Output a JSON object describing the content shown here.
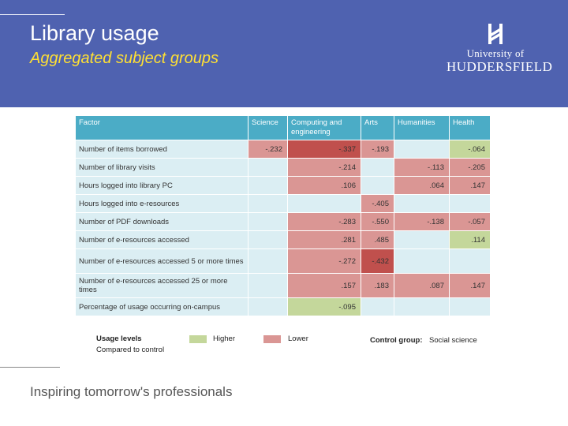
{
  "slide": {
    "title": "Library usage",
    "subtitle": "Aggregated subject groups",
    "logo": {
      "line1": "University of",
      "line2": "HUDDERSFIELD",
      "icon": "university-crest-icon"
    },
    "tagline": "Inspiring tomorrow's professionals"
  },
  "table": {
    "headers": [
      "Factor",
      "Science",
      "Computing and engineering",
      "Arts",
      "Humanities",
      "Health"
    ],
    "rows": [
      {
        "factor": "Number of items borrowed",
        "values": [
          "-.232",
          "-.337",
          "-.193",
          "",
          "-.064"
        ],
        "levels": [
          "lower",
          "lower-dark",
          "lower",
          "none",
          "higher"
        ]
      },
      {
        "factor": "Number of library visits",
        "values": [
          "",
          "-.214",
          "",
          "-.113",
          "-.205"
        ],
        "levels": [
          "none",
          "lower",
          "none",
          "lower",
          "lower"
        ]
      },
      {
        "factor": "Hours logged into library PC",
        "values": [
          "",
          ".106",
          "",
          ".064",
          ".147"
        ],
        "levels": [
          "none",
          "lower",
          "none",
          "lower",
          "lower"
        ]
      },
      {
        "factor": "Hours logged into e-resources",
        "values": [
          "",
          "",
          "-.405",
          "",
          ""
        ],
        "levels": [
          "none",
          "none",
          "lower",
          "none",
          "none"
        ]
      },
      {
        "factor": "Number of PDF downloads",
        "values": [
          "",
          "-.283",
          "-.550",
          "-.138",
          "-.057"
        ],
        "levels": [
          "none",
          "lower",
          "lower",
          "lower",
          "lower"
        ]
      },
      {
        "factor": "Number of e-resources accessed",
        "values": [
          "",
          ".281",
          ".485",
          "",
          ".114"
        ],
        "levels": [
          "none",
          "lower",
          "lower",
          "none",
          "higher"
        ]
      },
      {
        "factor": "Number of e-resources accessed 5 or more times",
        "values": [
          "",
          "-.272",
          "-.432",
          "",
          ""
        ],
        "levels": [
          "none",
          "lower",
          "lower-dark",
          "none",
          "none"
        ]
      },
      {
        "factor": "Number of e-resources accessed 25 or more times",
        "values": [
          "",
          ".157",
          ".183",
          ".087",
          ".147"
        ],
        "levels": [
          "none",
          "lower",
          "lower",
          "lower",
          "lower"
        ]
      },
      {
        "factor": "Percentage of usage occurring on-campus",
        "values": [
          "",
          "-.095",
          "",
          "",
          ""
        ],
        "levels": [
          "none",
          "higher",
          "none",
          "none",
          "none"
        ]
      }
    ]
  },
  "legend": {
    "usage_levels": "Usage levels",
    "compared": "Compared to control",
    "higher": "Higher",
    "lower": "Lower",
    "control_group_label": "Control group:",
    "control_group_value": "Social science",
    "colors": {
      "higher": "#c4d79b",
      "lower": "#da9694",
      "lower_dark": "#c0504d",
      "header": "#4bacc6",
      "banner": "#4f62b0"
    }
  }
}
